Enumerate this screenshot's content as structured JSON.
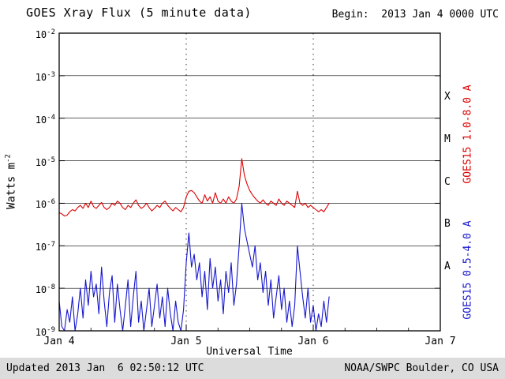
{
  "header": {
    "title": "GOES Xray Flux (5 minute data)",
    "begin": "Begin:  2013 Jan 4 0000 UTC"
  },
  "footer": {
    "updated": "Updated 2013 Jan  6 02:50:12 UTC",
    "source": "NOAA/SWPC Boulder, CO USA"
  },
  "axes": {
    "y_label_base": "Watts m",
    "y_label_exp": "-2",
    "x_label": "Universal Time",
    "x_tick_labels": [
      "Jan 4",
      "Jan 5",
      "Jan 6",
      "Jan 7"
    ],
    "y_tick_exponents": [
      -2,
      -3,
      -4,
      -5,
      -6,
      -7,
      -8,
      -9
    ],
    "flare_classes": [
      "X",
      "M",
      "C",
      "B",
      "A"
    ]
  },
  "right_labels": {
    "long": "GOES15 1.0-8.0 A",
    "short": "GOES15 0.5-4.0 A"
  },
  "colors": {
    "long_series": "#dd0000",
    "short_series": "#1616cf",
    "grid": "#000000",
    "footer_band": "#dcdcdc"
  },
  "chart_data": {
    "type": "line",
    "title": "GOES Xray Flux (5 minute data)",
    "xlabel": "Universal Time",
    "ylabel": "Watts m^-2",
    "x_range_hours": [
      0,
      72
    ],
    "x_tick_hours": [
      0,
      24,
      48,
      72
    ],
    "x_tick_labels": [
      "Jan 4",
      "Jan 5",
      "Jan 6",
      "Jan 7"
    ],
    "x_minor_tick_step_hours": 6,
    "day_boundary_hours": [
      24,
      48
    ],
    "ylog_range": [
      -9,
      -2
    ],
    "y_grid_exponents": [
      -3,
      -4,
      -5,
      -6,
      -7,
      -8
    ],
    "x_start_hours": 0,
    "x_step_hours": 0.5,
    "series": [
      {
        "name": "GOES15 1.0-8.0 A",
        "color": "#dd0000",
        "log10_flux": [
          -6.22,
          -6.25,
          -6.3,
          -6.28,
          -6.2,
          -6.15,
          -6.18,
          -6.1,
          -6.05,
          -6.12,
          -6.0,
          -6.1,
          -5.95,
          -6.08,
          -6.12,
          -6.05,
          -5.98,
          -6.1,
          -6.15,
          -6.1,
          -6.0,
          -6.05,
          -5.95,
          -6.0,
          -6.1,
          -6.15,
          -6.05,
          -6.1,
          -6.0,
          -5.92,
          -6.05,
          -6.12,
          -6.08,
          -6.0,
          -6.1,
          -6.18,
          -6.12,
          -6.05,
          -6.1,
          -6.0,
          -5.95,
          -6.05,
          -6.12,
          -6.18,
          -6.1,
          -6.15,
          -6.2,
          -6.1,
          -5.85,
          -5.72,
          -5.7,
          -5.75,
          -5.85,
          -5.95,
          -6.0,
          -5.8,
          -5.95,
          -5.85,
          -6.0,
          -5.75,
          -5.95,
          -6.0,
          -5.9,
          -6.0,
          -5.85,
          -5.95,
          -6.0,
          -5.9,
          -5.6,
          -4.95,
          -5.35,
          -5.55,
          -5.7,
          -5.8,
          -5.88,
          -5.95,
          -6.0,
          -5.92,
          -6.0,
          -6.05,
          -5.95,
          -6.0,
          -6.05,
          -5.9,
          -6.0,
          -6.05,
          -5.95,
          -6.0,
          -6.05,
          -6.1,
          -5.72,
          -6.0,
          -6.05,
          -6.0,
          -6.1,
          -6.05,
          -6.1,
          -6.15,
          -6.2,
          -6.15,
          -6.2,
          -6.1,
          -6.0
        ]
      },
      {
        "name": "GOES15 0.5-4.0 A",
        "color": "#1616cf",
        "log10_flux": [
          -8.3,
          -8.9,
          -9.0,
          -8.5,
          -8.8,
          -8.2,
          -9.0,
          -8.6,
          -8.0,
          -8.7,
          -7.8,
          -8.4,
          -7.6,
          -8.2,
          -7.9,
          -8.6,
          -7.5,
          -8.3,
          -8.9,
          -8.1,
          -7.7,
          -8.8,
          -7.9,
          -8.5,
          -9.0,
          -8.4,
          -7.8,
          -8.9,
          -8.2,
          -7.6,
          -8.8,
          -8.3,
          -9.0,
          -8.5,
          -8.0,
          -8.9,
          -8.4,
          -7.9,
          -8.7,
          -8.2,
          -8.9,
          -8.0,
          -8.6,
          -9.0,
          -8.3,
          -8.8,
          -9.0,
          -8.5,
          -7.4,
          -6.7,
          -7.5,
          -7.2,
          -7.8,
          -7.4,
          -8.2,
          -7.6,
          -8.5,
          -7.3,
          -8.0,
          -7.5,
          -8.3,
          -7.8,
          -8.6,
          -7.6,
          -8.1,
          -7.4,
          -8.4,
          -7.9,
          -7.0,
          -6.0,
          -6.6,
          -6.9,
          -7.2,
          -7.5,
          -7.0,
          -7.8,
          -7.4,
          -8.1,
          -7.6,
          -8.4,
          -7.8,
          -8.7,
          -8.2,
          -7.7,
          -8.5,
          -8.0,
          -8.8,
          -8.3,
          -8.9,
          -8.4,
          -7.0,
          -7.6,
          -8.2,
          -8.7,
          -8.0,
          -8.8,
          -8.4,
          -9.0,
          -8.6,
          -8.9,
          -8.3,
          -8.8,
          -8.2
        ]
      }
    ]
  }
}
